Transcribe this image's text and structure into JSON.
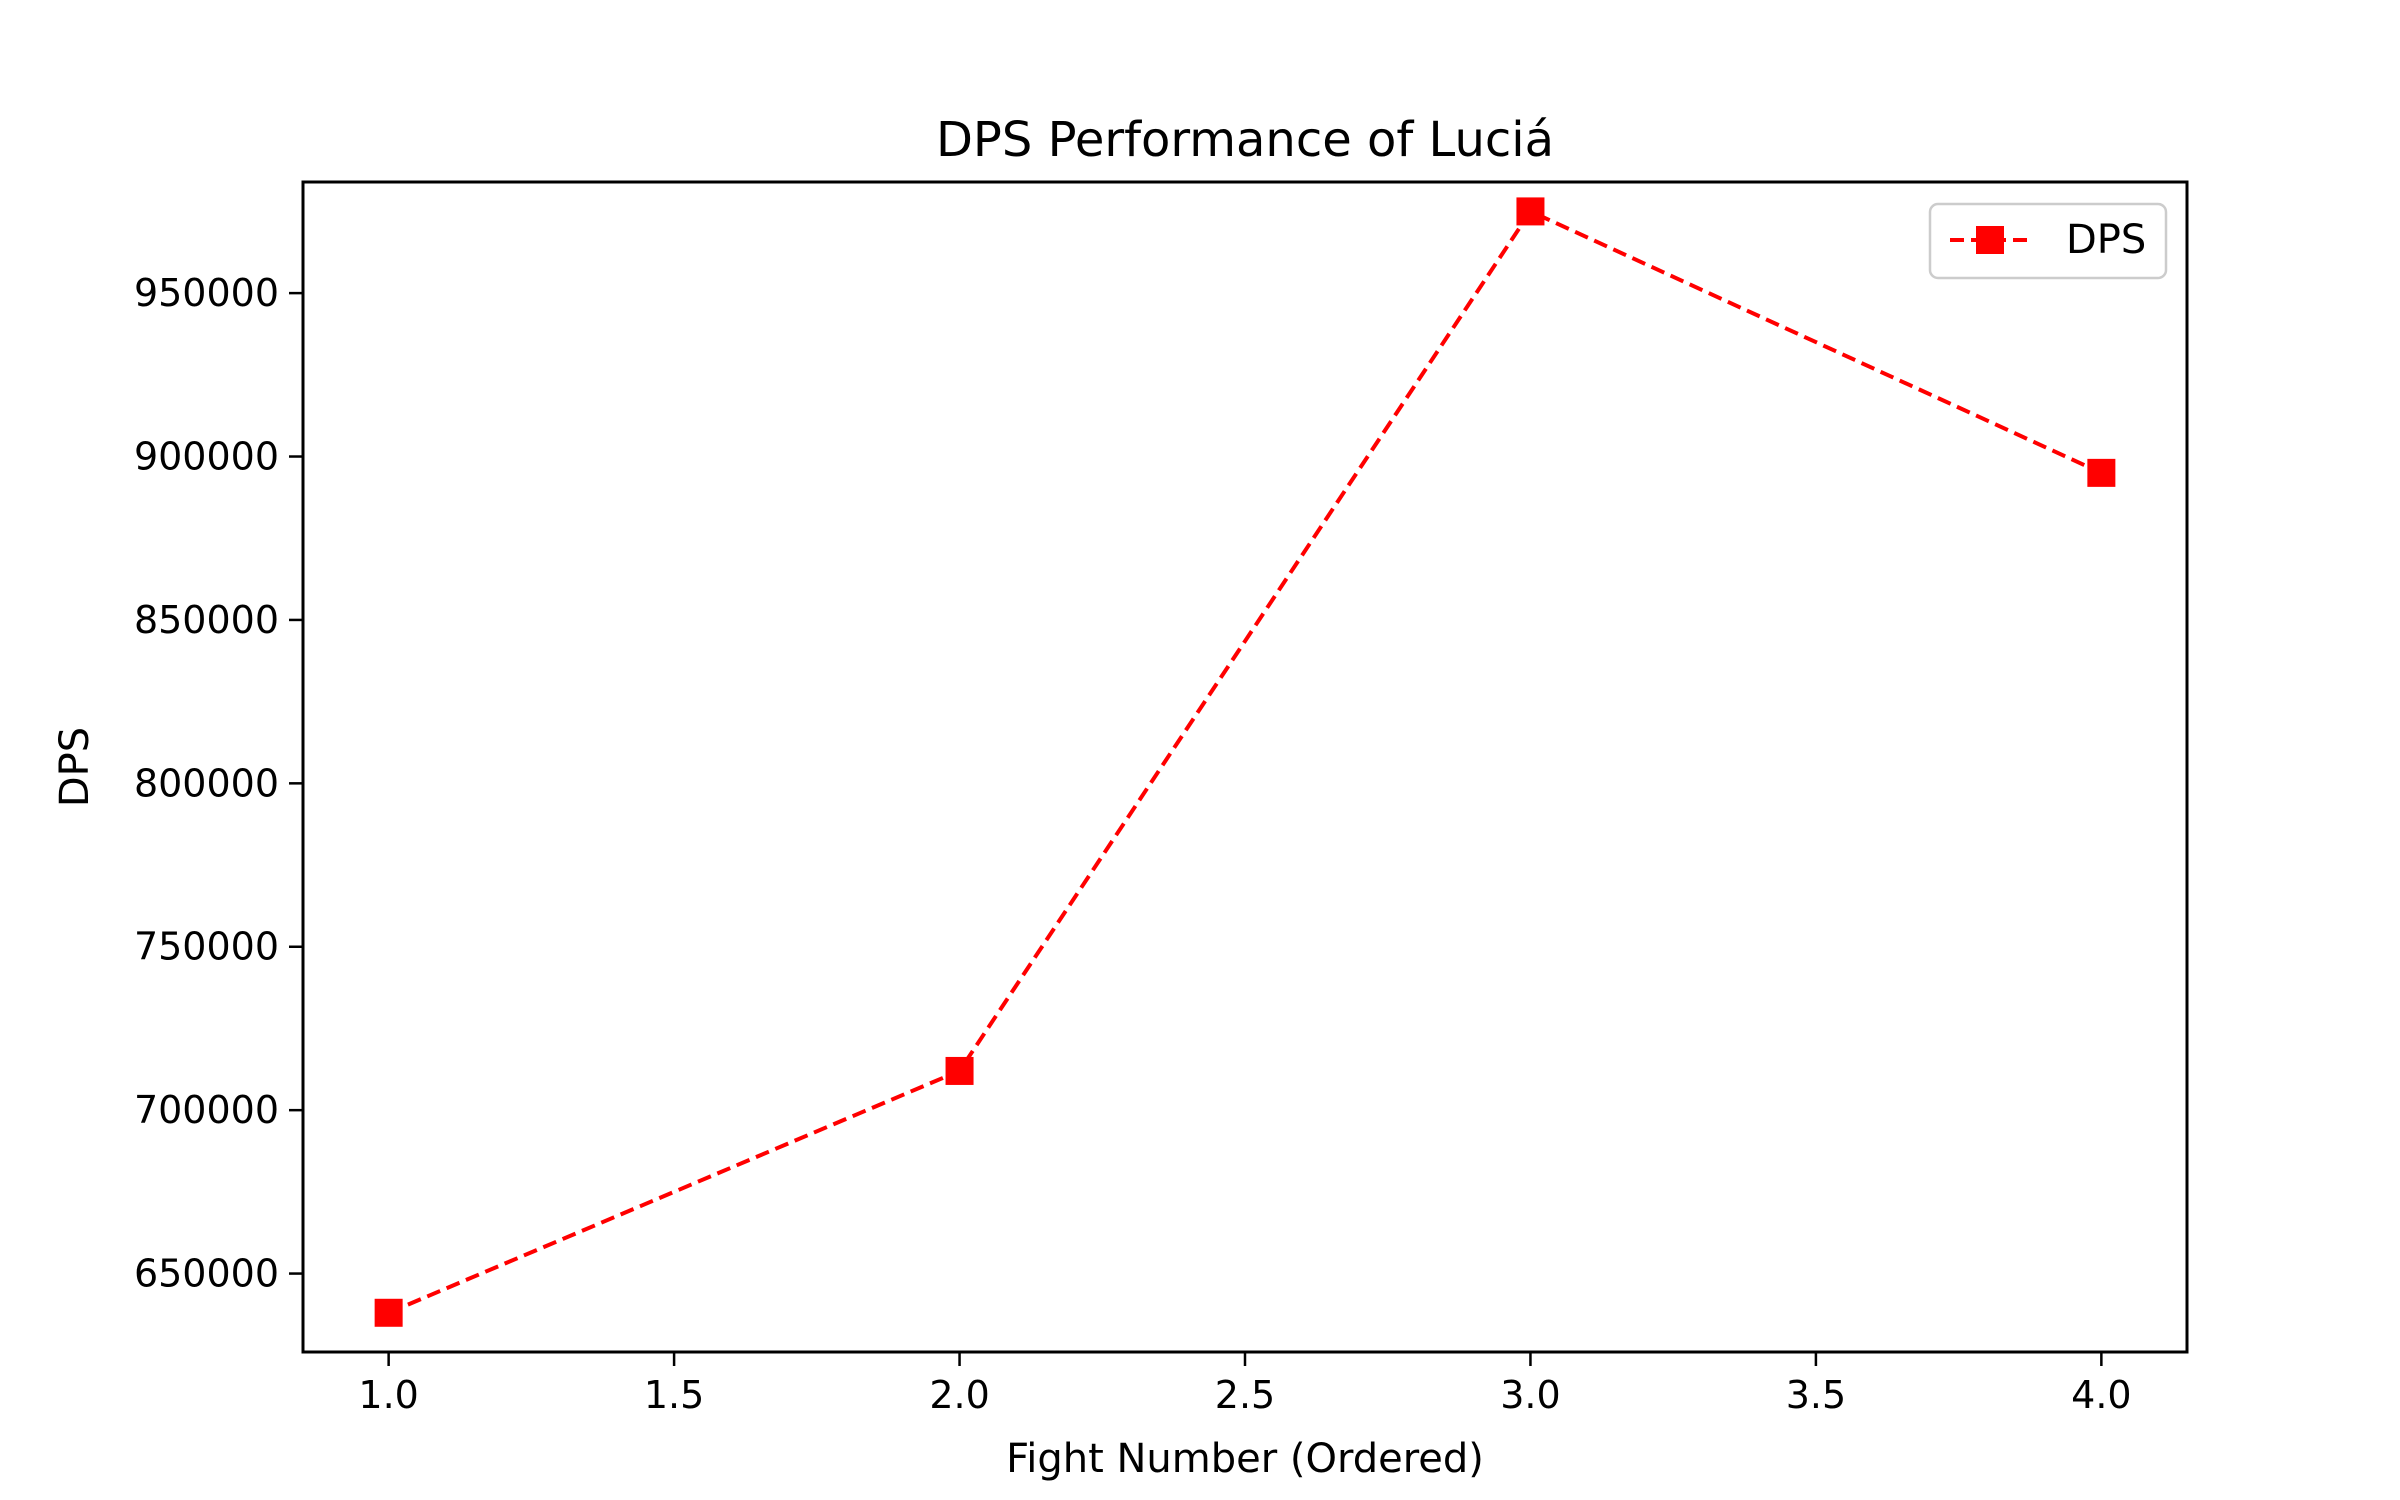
{
  "chart_data": {
    "type": "line",
    "title": "DPS Performance of Luciá",
    "xlabel": "Fight Number (Ordered)",
    "ylabel": "DPS",
    "x": [
      1,
      2,
      3,
      4
    ],
    "series": [
      {
        "name": "DPS",
        "values": [
          638000,
          712000,
          975000,
          895000
        ],
        "color": "#ff0000",
        "line_style": "dashed",
        "marker": "square"
      }
    ],
    "xlim": [
      0.85,
      4.15
    ],
    "ylim": [
      626000,
      984000
    ],
    "xticks": [
      1.0,
      1.5,
      2.0,
      2.5,
      3.0,
      3.5,
      4.0
    ],
    "xtick_labels": [
      "1.0",
      "1.5",
      "2.0",
      "2.5",
      "3.0",
      "3.5",
      "4.0"
    ],
    "yticks": [
      650000,
      700000,
      750000,
      800000,
      850000,
      900000,
      950000
    ],
    "ytick_labels": [
      "650000",
      "700000",
      "750000",
      "800000",
      "850000",
      "900000",
      "950000"
    ],
    "grid": false,
    "legend_position": "top-right"
  }
}
